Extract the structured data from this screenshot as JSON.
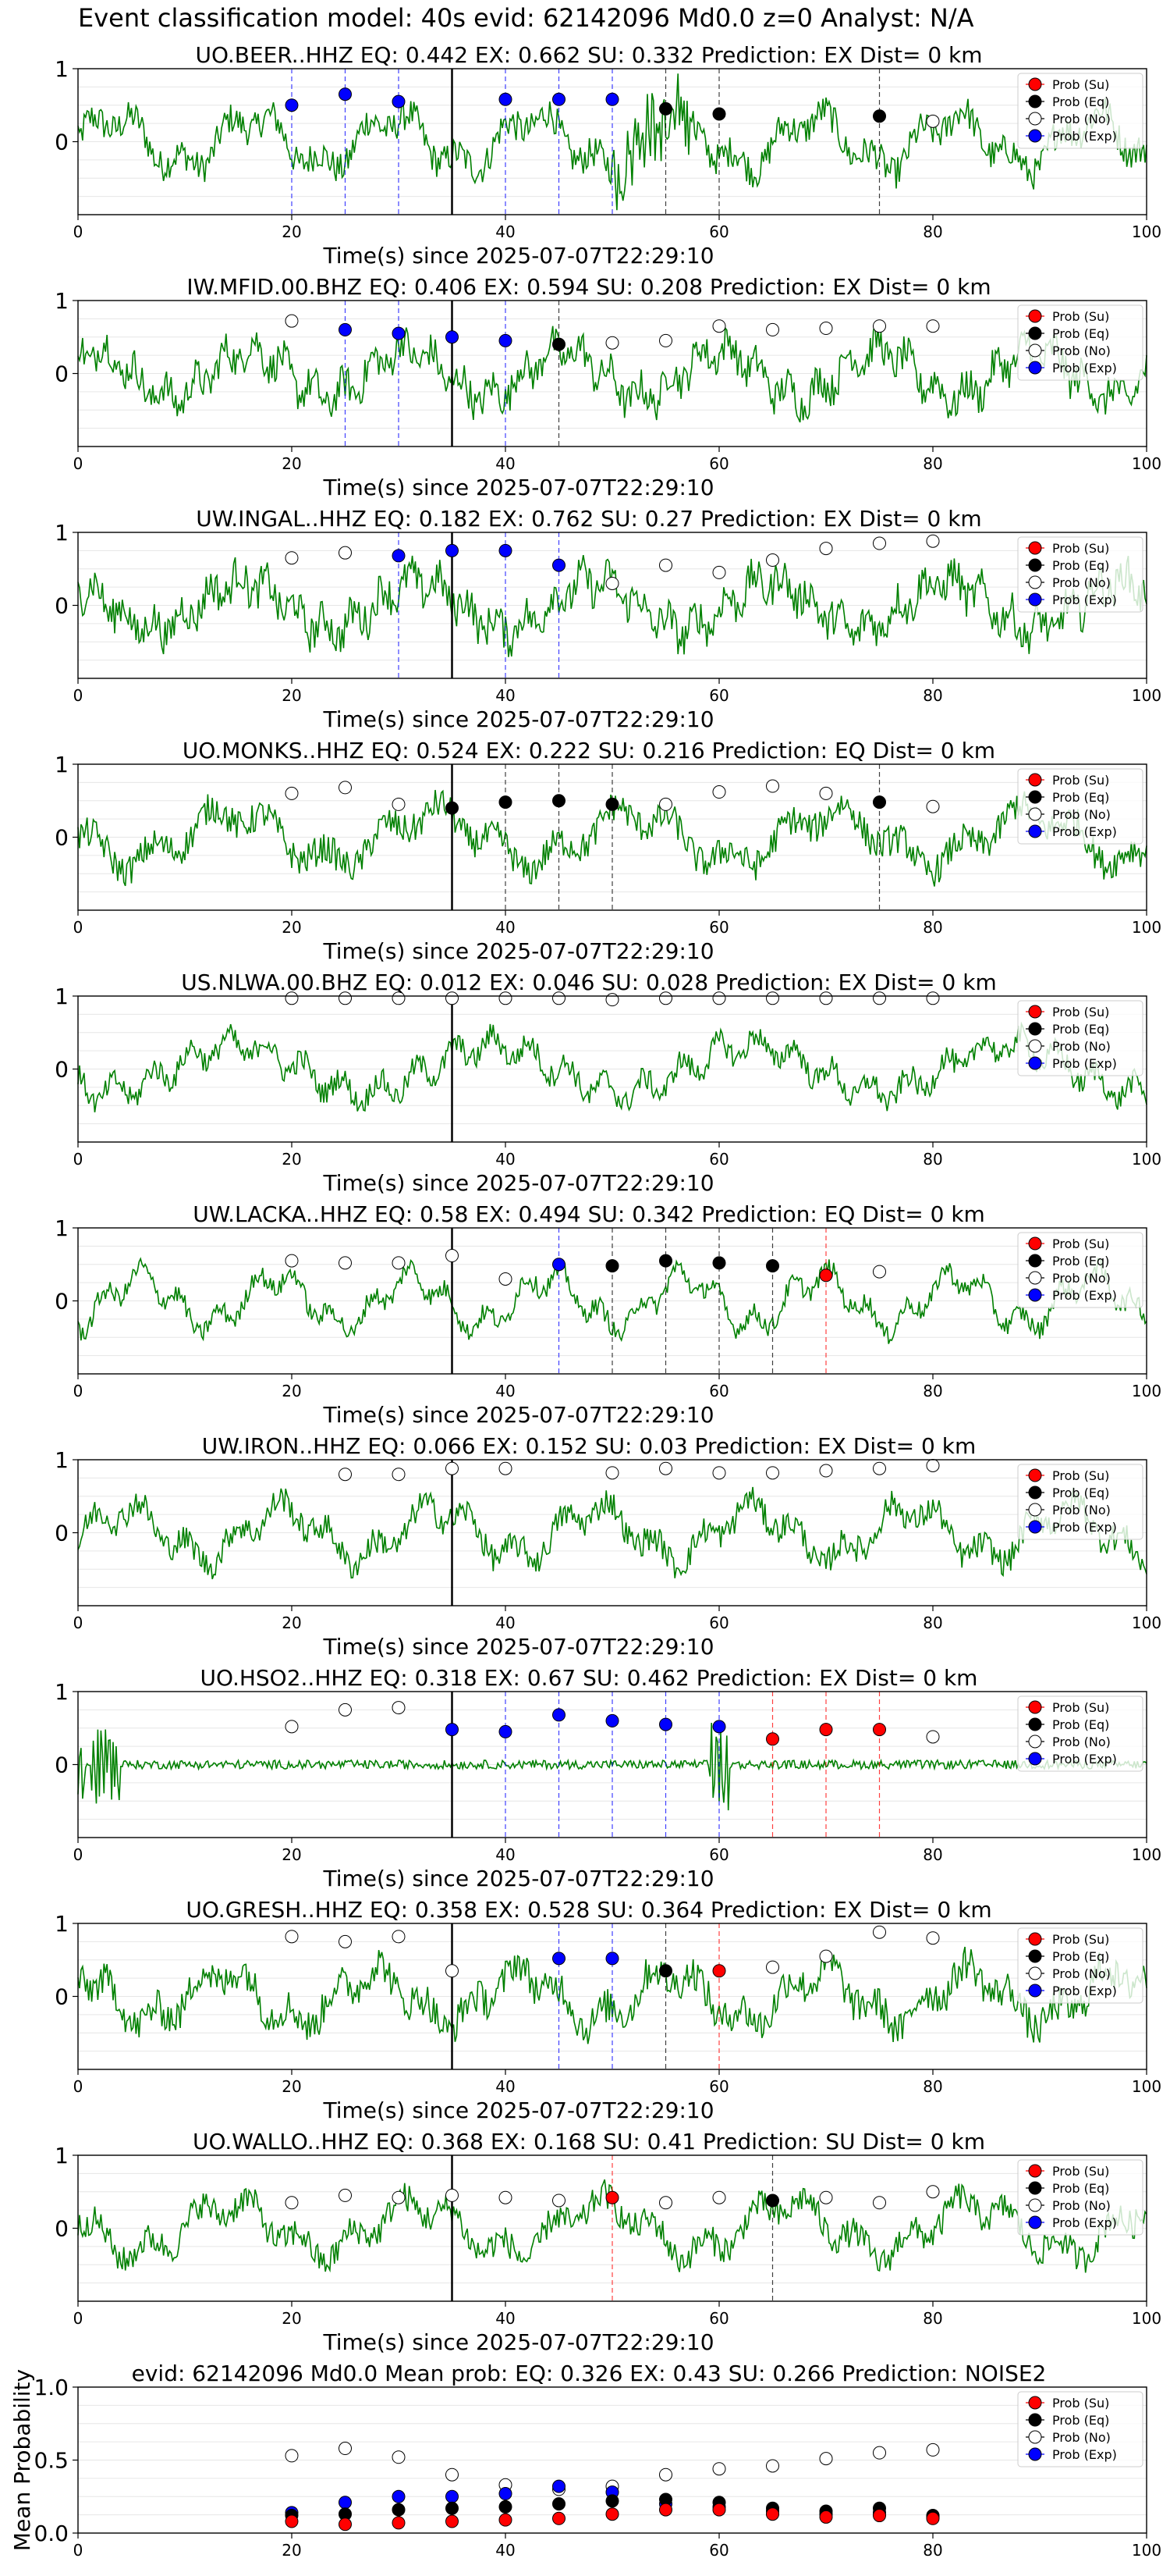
{
  "suptitle": "Event classification model: 40s evid: 62142096 Md0.0 z=0 Analyst: N/A",
  "legend_labels": [
    "Prob (Su)",
    "Prob (Eq)",
    "Prob (No)",
    "Prob (Exp)"
  ],
  "colors": {
    "trace": "#008000",
    "su": "#ff0000",
    "eq": "#000000",
    "no": "#ffffff",
    "exp": "#0000ff"
  },
  "xlabel": "Time(s) since 2025-07-07T22:29:10",
  "chart_data": [
    {
      "type": "scatter",
      "station": "UO.BEER..HHZ",
      "title": "UO.BEER..HHZ   EQ: 0.442  EX: 0.662  SU: 0.332   Prediction: EX    Dist= 0 km",
      "xlim": [
        0,
        100
      ],
      "ylim": [
        -1,
        1
      ],
      "yticks": [
        0,
        1
      ],
      "xticks": [
        0,
        20,
        40,
        60,
        80,
        100
      ],
      "onset": 35,
      "points": [
        [
          20,
          0.5,
          "exp"
        ],
        [
          25,
          0.65,
          "exp"
        ],
        [
          30,
          0.55,
          "exp"
        ],
        [
          40,
          0.58,
          "exp"
        ],
        [
          45,
          0.58,
          "exp"
        ],
        [
          50,
          0.58,
          "exp"
        ],
        [
          55,
          0.45,
          "eq"
        ],
        [
          60,
          0.38,
          "eq"
        ],
        [
          75,
          0.35,
          "eq"
        ],
        [
          80,
          0.28,
          "no"
        ]
      ]
    },
    {
      "type": "scatter",
      "station": "IW.MFID.00.BHZ",
      "title": "IW.MFID.00.BHZ   EQ: 0.406  EX: 0.594  SU: 0.208   Prediction: EX    Dist= 0 km",
      "xlim": [
        0,
        100
      ],
      "ylim": [
        -1,
        1
      ],
      "yticks": [
        0,
        1
      ],
      "xticks": [
        0,
        20,
        40,
        60,
        80,
        100
      ],
      "onset": 35,
      "points": [
        [
          20,
          0.72,
          "no"
        ],
        [
          25,
          0.6,
          "exp"
        ],
        [
          30,
          0.55,
          "exp"
        ],
        [
          35,
          0.5,
          "exp"
        ],
        [
          40,
          0.45,
          "exp"
        ],
        [
          45,
          0.4,
          "eq"
        ],
        [
          50,
          0.42,
          "no"
        ],
        [
          55,
          0.45,
          "no"
        ],
        [
          60,
          0.65,
          "no"
        ],
        [
          65,
          0.6,
          "no"
        ],
        [
          70,
          0.62,
          "no"
        ],
        [
          75,
          0.65,
          "no"
        ],
        [
          80,
          0.65,
          "no"
        ]
      ]
    },
    {
      "type": "scatter",
      "station": "UW.INGAL..HHZ",
      "title": "UW.INGAL..HHZ   EQ: 0.182  EX: 0.762  SU: 0.27   Prediction: EX    Dist= 0 km",
      "xlim": [
        0,
        100
      ],
      "ylim": [
        -1,
        1
      ],
      "yticks": [
        0,
        1
      ],
      "xticks": [
        0,
        20,
        40,
        60,
        80,
        100
      ],
      "onset": 35,
      "points": [
        [
          20,
          0.65,
          "no"
        ],
        [
          25,
          0.72,
          "no"
        ],
        [
          30,
          0.68,
          "exp"
        ],
        [
          35,
          0.75,
          "exp"
        ],
        [
          40,
          0.75,
          "exp"
        ],
        [
          45,
          0.55,
          "exp"
        ],
        [
          50,
          0.3,
          "no"
        ],
        [
          55,
          0.55,
          "no"
        ],
        [
          60,
          0.45,
          "no"
        ],
        [
          65,
          0.62,
          "no"
        ],
        [
          70,
          0.78,
          "no"
        ],
        [
          75,
          0.85,
          "no"
        ],
        [
          80,
          0.88,
          "no"
        ]
      ]
    },
    {
      "type": "scatter",
      "station": "UO.MONKS..HHZ",
      "title": "UO.MONKS..HHZ   EQ: 0.524  EX: 0.222  SU: 0.216   Prediction: EQ    Dist= 0 km",
      "xlim": [
        0,
        100
      ],
      "ylim": [
        -1,
        1
      ],
      "yticks": [
        0,
        1
      ],
      "xticks": [
        0,
        20,
        40,
        60,
        80,
        100
      ],
      "onset": 35,
      "points": [
        [
          20,
          0.6,
          "no"
        ],
        [
          25,
          0.68,
          "no"
        ],
        [
          30,
          0.45,
          "no"
        ],
        [
          35,
          0.4,
          "eq"
        ],
        [
          40,
          0.48,
          "eq"
        ],
        [
          45,
          0.5,
          "eq"
        ],
        [
          50,
          0.45,
          "eq"
        ],
        [
          55,
          0.45,
          "no"
        ],
        [
          60,
          0.62,
          "no"
        ],
        [
          65,
          0.7,
          "no"
        ],
        [
          70,
          0.6,
          "no"
        ],
        [
          75,
          0.48,
          "eq"
        ],
        [
          80,
          0.42,
          "no"
        ]
      ]
    },
    {
      "type": "scatter",
      "station": "US.NLWA.00.BHZ",
      "title": "US.NLWA.00.BHZ   EQ: 0.012  EX: 0.046  SU: 0.028   Prediction: EX    Dist= 0 km",
      "xlim": [
        0,
        100
      ],
      "ylim": [
        -1,
        1
      ],
      "yticks": [
        0,
        1
      ],
      "xticks": [
        0,
        20,
        40,
        60,
        80,
        100
      ],
      "onset": 35,
      "points": [
        [
          20,
          0.97,
          "no"
        ],
        [
          25,
          0.97,
          "no"
        ],
        [
          30,
          0.97,
          "no"
        ],
        [
          35,
          0.97,
          "no"
        ],
        [
          40,
          0.97,
          "no"
        ],
        [
          45,
          0.97,
          "no"
        ],
        [
          50,
          0.95,
          "no"
        ],
        [
          55,
          0.97,
          "no"
        ],
        [
          60,
          0.97,
          "no"
        ],
        [
          65,
          0.97,
          "no"
        ],
        [
          70,
          0.97,
          "no"
        ],
        [
          75,
          0.97,
          "no"
        ],
        [
          80,
          0.97,
          "no"
        ]
      ]
    },
    {
      "type": "scatter",
      "station": "UW.LACKA..HHZ",
      "title": "UW.LACKA..HHZ   EQ: 0.58  EX: 0.494  SU: 0.342   Prediction: EQ    Dist= 0 km",
      "xlim": [
        0,
        100
      ],
      "ylim": [
        -1,
        1
      ],
      "yticks": [
        0,
        1
      ],
      "xticks": [
        0,
        20,
        40,
        60,
        80,
        100
      ],
      "onset": 35,
      "points": [
        [
          20,
          0.55,
          "no"
        ],
        [
          25,
          0.52,
          "no"
        ],
        [
          30,
          0.52,
          "no"
        ],
        [
          35,
          0.62,
          "no"
        ],
        [
          40,
          0.3,
          "no"
        ],
        [
          45,
          0.5,
          "exp"
        ],
        [
          50,
          0.48,
          "eq"
        ],
        [
          55,
          0.55,
          "eq"
        ],
        [
          60,
          0.52,
          "eq"
        ],
        [
          65,
          0.48,
          "eq"
        ],
        [
          70,
          0.35,
          "su"
        ],
        [
          75,
          0.4,
          "no"
        ]
      ]
    },
    {
      "type": "scatter",
      "station": "UW.IRON..HHZ",
      "title": "UW.IRON..HHZ   EQ: 0.066  EX: 0.152  SU: 0.03   Prediction: EX    Dist= 0 km",
      "xlim": [
        0,
        100
      ],
      "ylim": [
        -1,
        1
      ],
      "yticks": [
        0,
        1
      ],
      "xticks": [
        0,
        20,
        40,
        60,
        80,
        100
      ],
      "onset": 35,
      "points": [
        [
          25,
          0.8,
          "no"
        ],
        [
          30,
          0.8,
          "no"
        ],
        [
          35,
          0.88,
          "no"
        ],
        [
          40,
          0.88,
          "no"
        ],
        [
          50,
          0.82,
          "no"
        ],
        [
          55,
          0.88,
          "no"
        ],
        [
          60,
          0.82,
          "no"
        ],
        [
          65,
          0.82,
          "no"
        ],
        [
          70,
          0.85,
          "no"
        ],
        [
          75,
          0.88,
          "no"
        ],
        [
          80,
          0.92,
          "no"
        ]
      ]
    },
    {
      "type": "scatter",
      "station": "UO.HSO2..HHZ",
      "title": "UO.HSO2..HHZ   EQ: 0.318  EX: 0.67  SU: 0.462   Prediction: EX    Dist= 0 km",
      "xlim": [
        0,
        100
      ],
      "ylim": [
        -1,
        1
      ],
      "yticks": [
        0,
        1
      ],
      "xticks": [
        0,
        20,
        40,
        60,
        80,
        100
      ],
      "onset": 35,
      "points": [
        [
          20,
          0.52,
          "no"
        ],
        [
          25,
          0.75,
          "no"
        ],
        [
          30,
          0.78,
          "no"
        ],
        [
          35,
          0.48,
          "exp"
        ],
        [
          40,
          0.45,
          "exp"
        ],
        [
          45,
          0.68,
          "exp"
        ],
        [
          50,
          0.6,
          "exp"
        ],
        [
          55,
          0.55,
          "exp"
        ],
        [
          60,
          0.52,
          "exp"
        ],
        [
          65,
          0.35,
          "su"
        ],
        [
          70,
          0.48,
          "su"
        ],
        [
          75,
          0.48,
          "su"
        ],
        [
          80,
          0.38,
          "no"
        ]
      ]
    },
    {
      "type": "scatter",
      "station": "UO.GRESH..HHZ",
      "title": "UO.GRESH..HHZ   EQ: 0.358  EX: 0.528  SU: 0.364   Prediction: EX    Dist= 0 km",
      "xlim": [
        0,
        100
      ],
      "ylim": [
        -1,
        1
      ],
      "yticks": [
        0,
        1
      ],
      "xticks": [
        0,
        20,
        40,
        60,
        80,
        100
      ],
      "onset": 35,
      "points": [
        [
          20,
          0.82,
          "no"
        ],
        [
          25,
          0.75,
          "no"
        ],
        [
          30,
          0.82,
          "no"
        ],
        [
          35,
          0.35,
          "no"
        ],
        [
          45,
          0.52,
          "exp"
        ],
        [
          50,
          0.52,
          "exp"
        ],
        [
          55,
          0.35,
          "eq"
        ],
        [
          60,
          0.35,
          "su"
        ],
        [
          65,
          0.4,
          "no"
        ],
        [
          70,
          0.55,
          "no"
        ],
        [
          75,
          0.88,
          "no"
        ],
        [
          80,
          0.8,
          "no"
        ]
      ]
    },
    {
      "type": "scatter",
      "station": "UO.WALLO..HHZ",
      "title": "UO.WALLO..HHZ   EQ: 0.368  EX: 0.168  SU: 0.41   Prediction: SU    Dist= 0 km",
      "xlim": [
        0,
        100
      ],
      "ylim": [
        -1,
        1
      ],
      "yticks": [
        0,
        1
      ],
      "xticks": [
        0,
        20,
        40,
        60,
        80,
        100
      ],
      "onset": 35,
      "points": [
        [
          20,
          0.35,
          "no"
        ],
        [
          25,
          0.45,
          "no"
        ],
        [
          30,
          0.42,
          "no"
        ],
        [
          35,
          0.45,
          "no"
        ],
        [
          40,
          0.42,
          "no"
        ],
        [
          45,
          0.38,
          "no"
        ],
        [
          50,
          0.42,
          "su"
        ],
        [
          55,
          0.35,
          "no"
        ],
        [
          60,
          0.42,
          "no"
        ],
        [
          65,
          0.38,
          "eq"
        ],
        [
          70,
          0.42,
          "no"
        ],
        [
          75,
          0.35,
          "no"
        ],
        [
          80,
          0.5,
          "no"
        ]
      ]
    },
    {
      "type": "scatter",
      "title": "evid: 62142096  Md0.0   Mean prob:   EQ: 0.326  EX: 0.43  SU: 0.266   Prediction: NOISE2",
      "ylabel": "Mean Probability",
      "xlim": [
        0,
        100
      ],
      "ylim": [
        0,
        1
      ],
      "yticks": [
        0.0,
        0.5,
        1.0
      ],
      "xticks": [
        0,
        20,
        40,
        60,
        80,
        100
      ],
      "series": [
        {
          "name": "Prob (No)",
          "class": "no",
          "x": [
            20,
            25,
            30,
            35,
            40,
            45,
            50,
            55,
            60,
            65,
            70,
            75,
            80
          ],
          "y": [
            0.53,
            0.58,
            0.52,
            0.4,
            0.33,
            0.3,
            0.32,
            0.4,
            0.44,
            0.46,
            0.51,
            0.55,
            0.57
          ]
        },
        {
          "name": "Prob (Exp)",
          "class": "exp",
          "x": [
            20,
            25,
            30,
            35,
            40,
            45,
            50,
            55,
            60,
            65,
            70,
            75,
            80
          ],
          "y": [
            0.14,
            0.21,
            0.25,
            0.25,
            0.27,
            0.32,
            0.28,
            0.2,
            0.18,
            0.15,
            0.13,
            0.14,
            0.11
          ]
        },
        {
          "name": "Prob (Eq)",
          "class": "eq",
          "x": [
            20,
            25,
            30,
            35,
            40,
            45,
            50,
            55,
            60,
            65,
            70,
            75,
            80
          ],
          "y": [
            0.12,
            0.13,
            0.16,
            0.17,
            0.18,
            0.2,
            0.22,
            0.23,
            0.21,
            0.17,
            0.15,
            0.17,
            0.12
          ]
        },
        {
          "name": "Prob (Su)",
          "class": "su",
          "x": [
            20,
            25,
            30,
            35,
            40,
            45,
            50,
            55,
            60,
            65,
            70,
            75,
            80
          ],
          "y": [
            0.08,
            0.06,
            0.07,
            0.08,
            0.09,
            0.1,
            0.13,
            0.16,
            0.16,
            0.13,
            0.11,
            0.12,
            0.1
          ]
        }
      ]
    }
  ]
}
